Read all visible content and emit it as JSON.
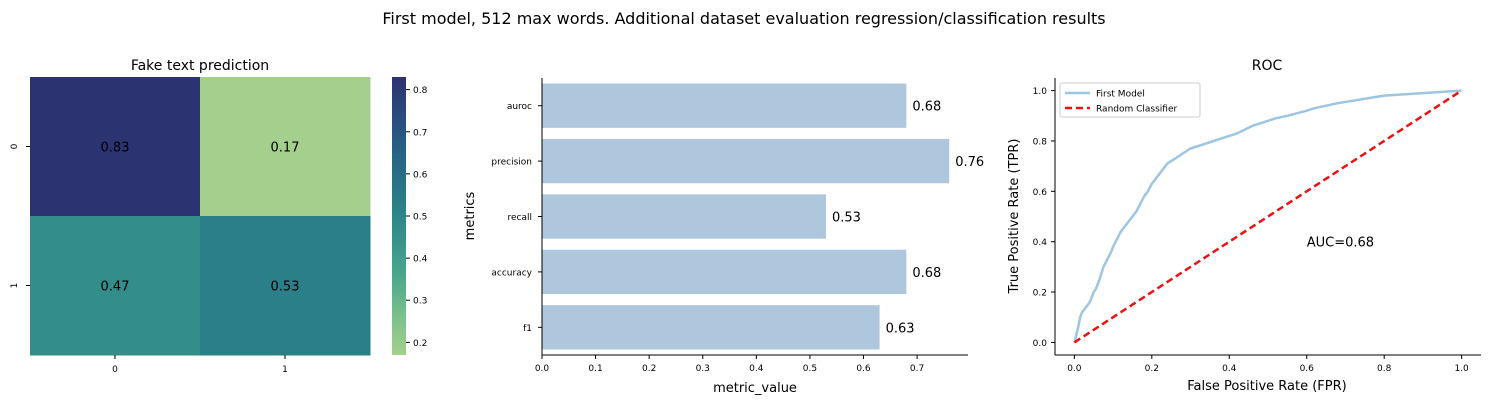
{
  "suptitle": "First model, 512 max words. Additional dataset evaluation regression/classification results",
  "chart_data": [
    {
      "type": "heatmap",
      "title": "Fake text prediction",
      "x_categories": [
        "0",
        "1"
      ],
      "y_categories": [
        "0",
        "1"
      ],
      "values": [
        [
          0.83,
          0.17
        ],
        [
          0.47,
          0.53
        ]
      ],
      "annotations": [
        [
          "0.83",
          "0.17"
        ],
        [
          "0.47",
          "0.53"
        ]
      ],
      "colormap": "crest",
      "colorbar": {
        "range": [
          0.17,
          0.83
        ],
        "ticks": [
          0.2,
          0.3,
          0.4,
          0.5,
          0.6,
          0.7,
          0.8
        ],
        "tick_labels": [
          "0.2",
          "0.3",
          "0.4",
          "0.5",
          "0.6",
          "0.7",
          "0.8"
        ],
        "colors": [
          "#a5cf8d",
          "#79bf8c",
          "#4aa78b",
          "#35918a",
          "#297b87",
          "#276484",
          "#2b4b7f",
          "#2c3371"
        ]
      }
    },
    {
      "type": "bar",
      "orientation": "horizontal",
      "categories": [
        "auroc",
        "precision",
        "recall",
        "accuracy",
        "f1"
      ],
      "values": [
        0.68,
        0.76,
        0.53,
        0.68,
        0.63
      ],
      "value_labels": [
        "0.68",
        "0.76",
        "0.53",
        "0.68",
        "0.63"
      ],
      "xlabel": "metric_value",
      "ylabel": "metrics",
      "xlim": [
        0,
        0.795
      ],
      "xticks": [
        0.0,
        0.1,
        0.2,
        0.3,
        0.4,
        0.5,
        0.6,
        0.7
      ],
      "xtick_labels": [
        "0.0",
        "0.1",
        "0.2",
        "0.3",
        "0.4",
        "0.5",
        "0.6",
        "0.7"
      ],
      "color": "#aec7dc"
    },
    {
      "type": "line",
      "title": "ROC",
      "xlabel": "False Positive Rate (FPR)",
      "ylabel": "True Positive Rate (TPR)",
      "xlim": [
        -0.05,
        1.05
      ],
      "ylim": [
        -0.05,
        1.05
      ],
      "xticks": [
        0.0,
        0.2,
        0.4,
        0.6,
        0.8,
        1.0
      ],
      "xtick_labels": [
        "0.0",
        "0.2",
        "0.4",
        "0.6",
        "0.8",
        "1.0"
      ],
      "yticks": [
        0.0,
        0.2,
        0.4,
        0.6,
        0.8,
        1.0
      ],
      "ytick_labels": [
        "0.0",
        "0.2",
        "0.4",
        "0.6",
        "0.8",
        "1.0"
      ],
      "annotation": "AUC=0.68",
      "annotation_xy": [
        0.6,
        0.4
      ],
      "legend_position": "top-left",
      "series": [
        {
          "name": "First Model",
          "color": "#9ec5e1",
          "style": "solid",
          "x": [
            0.0,
            0.005,
            0.01,
            0.015,
            0.02,
            0.03,
            0.04,
            0.05,
            0.055,
            0.065,
            0.075,
            0.085,
            0.095,
            0.1,
            0.11,
            0.12,
            0.13,
            0.14,
            0.15,
            0.16,
            0.17,
            0.18,
            0.19,
            0.2,
            0.21,
            0.22,
            0.23,
            0.24,
            0.25,
            0.26,
            0.27,
            0.28,
            0.3,
            0.32,
            0.34,
            0.36,
            0.38,
            0.4,
            0.42,
            0.44,
            0.46,
            0.48,
            0.5,
            0.52,
            0.55,
            0.6,
            0.62,
            0.65,
            0.68,
            0.72,
            0.76,
            0.8,
            0.85,
            0.9,
            0.95,
            1.0
          ],
          "y": [
            0.0,
            0.03,
            0.06,
            0.1,
            0.12,
            0.14,
            0.16,
            0.2,
            0.21,
            0.25,
            0.3,
            0.33,
            0.36,
            0.38,
            0.41,
            0.44,
            0.46,
            0.48,
            0.5,
            0.52,
            0.55,
            0.58,
            0.6,
            0.63,
            0.65,
            0.67,
            0.69,
            0.71,
            0.72,
            0.73,
            0.74,
            0.75,
            0.77,
            0.78,
            0.79,
            0.8,
            0.81,
            0.82,
            0.83,
            0.845,
            0.86,
            0.87,
            0.88,
            0.89,
            0.9,
            0.92,
            0.93,
            0.94,
            0.95,
            0.96,
            0.97,
            0.98,
            0.985,
            0.99,
            0.995,
            1.0
          ]
        },
        {
          "name": "Random Classifier",
          "color": "#ee1111",
          "style": "dashed",
          "x": [
            0.0,
            1.0
          ],
          "y": [
            0.0,
            1.0
          ]
        }
      ]
    }
  ]
}
